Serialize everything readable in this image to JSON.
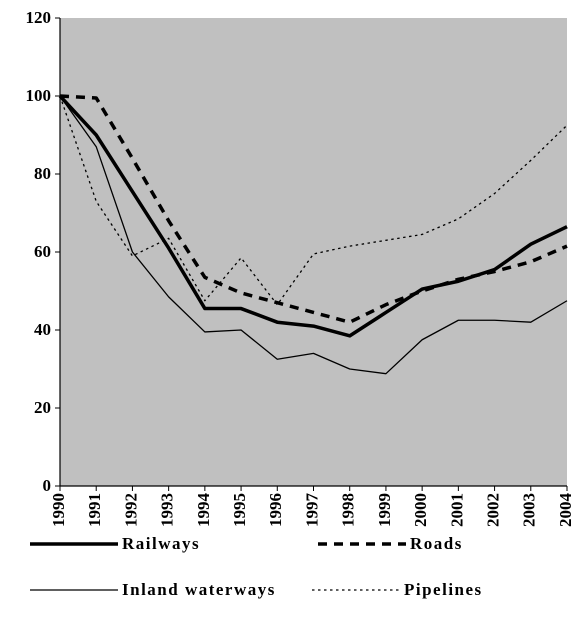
{
  "chart_data": {
    "type": "line",
    "categories": [
      "1990",
      "1991",
      "1992",
      "1993",
      "1994",
      "1995",
      "1996",
      "1997",
      "1998",
      "1999",
      "2000",
      "2001",
      "2002",
      "2003",
      "2004"
    ],
    "series": [
      {
        "name": "Railways",
        "color": "#000000",
        "line_style": "solid",
        "line_width": 3.5,
        "values": [
          100,
          90,
          75.5,
          61,
          45.5,
          45.5,
          42,
          41,
          38.5,
          44.5,
          50.5,
          52.5,
          55.5,
          62,
          66.5
        ]
      },
      {
        "name": "Roads",
        "color": "#000000",
        "line_style": "dashed",
        "line_width": 3.5,
        "values": [
          100,
          99.5,
          84,
          68,
          53.5,
          49.5,
          47,
          44.5,
          42,
          46.5,
          50,
          53,
          55,
          57.5,
          61.5
        ]
      },
      {
        "name": "Inland waterways",
        "color": "#000000",
        "line_style": "solid",
        "line_width": 1.3,
        "values": [
          100,
          87,
          60,
          48.5,
          39.5,
          40,
          32.5,
          34,
          30,
          28.8,
          37.5,
          42.5,
          42.5,
          42,
          47.5
        ]
      },
      {
        "name": "Pipelines",
        "color": "#000000",
        "line_style": "dotted",
        "line_width": 1.3,
        "values": [
          100,
          73,
          59,
          63.5,
          47.5,
          58.5,
          46.5,
          59.5,
          61.5,
          63,
          64.5,
          68.5,
          75,
          83.5,
          92.5
        ]
      }
    ],
    "ylim": [
      0,
      120
    ],
    "yticks": [
      0,
      20,
      40,
      60,
      80,
      100,
      120
    ],
    "plot_background": "#c0c0c0",
    "legend": "bottom"
  }
}
